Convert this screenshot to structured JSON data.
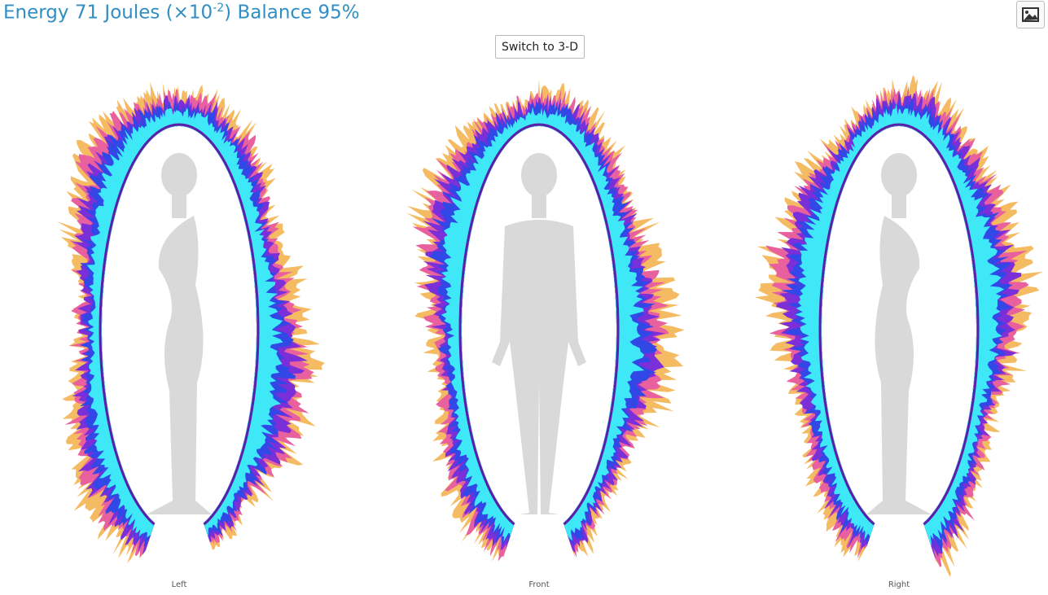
{
  "header": {
    "title": "Energy 71 Joules (×10",
    "exponent": "-2",
    "title_end": ") Balance 95%"
  },
  "button": "Switch to 3-D",
  "views": [
    {
      "label": "Left"
    },
    {
      "label": "Front"
    },
    {
      "label": "Right"
    }
  ]
}
